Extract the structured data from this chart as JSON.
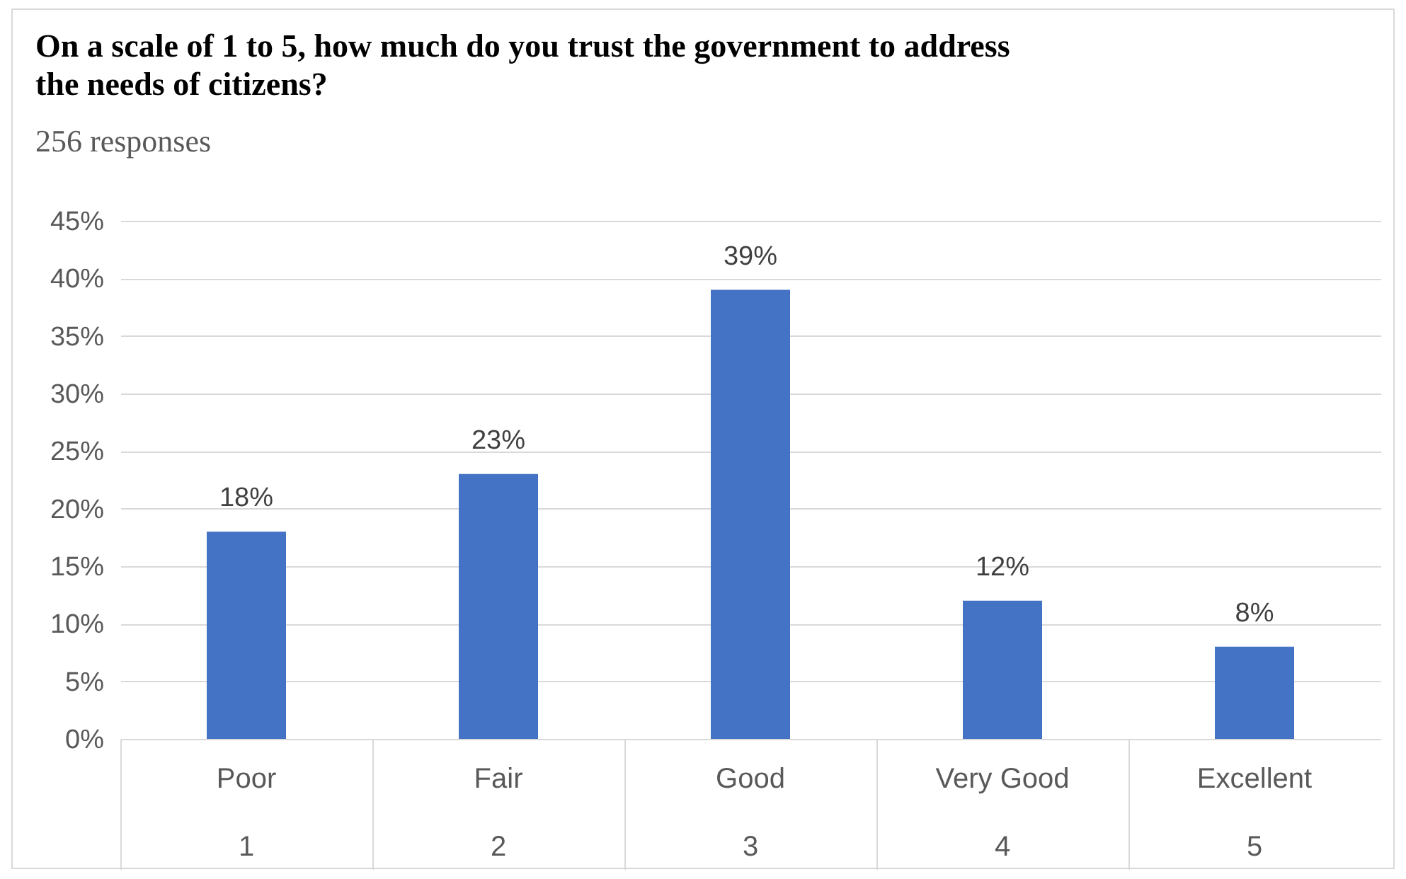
{
  "chart_data": {
    "type": "bar",
    "title": "On a scale of 1 to 5, how much do you trust the government to address the needs of citizens?",
    "subtitle": "256 responses",
    "categories": [
      "Poor\n1",
      "Fair\n2",
      "Good\n3",
      "Very Good\n4",
      "Excellent\n5"
    ],
    "values": [
      18,
      23,
      39,
      12,
      8
    ],
    "value_labels": [
      "18%",
      "23%",
      "39%",
      "12%",
      "8%"
    ],
    "color": "#4472c4",
    "ylim": [
      0,
      45
    ],
    "yticks": [
      {
        "value": 0,
        "label": "0%"
      },
      {
        "value": 5,
        "label": "5%"
      },
      {
        "value": 10,
        "label": "10%"
      },
      {
        "value": 15,
        "label": "15%"
      },
      {
        "value": 20,
        "label": "20%"
      },
      {
        "value": 25,
        "label": "25%"
      },
      {
        "value": 30,
        "label": "30%"
      },
      {
        "value": 35,
        "label": "35%"
      },
      {
        "value": 40,
        "label": "40%"
      },
      {
        "value": 45,
        "label": "45%"
      }
    ],
    "grid": "y"
  }
}
